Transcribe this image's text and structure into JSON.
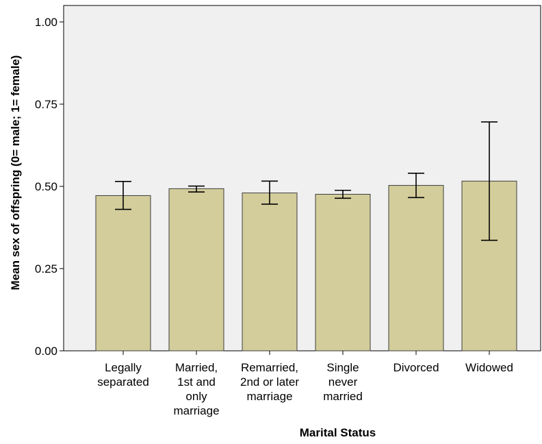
{
  "chart_data": {
    "type": "bar",
    "title": "",
    "xlabel": "Marital Status",
    "ylabel": "Mean sex of offspring (0= male; 1= female)",
    "ylim": [
      0,
      1.05
    ],
    "yticks": [
      0,
      0.25,
      0.5,
      0.75,
      1
    ],
    "ytick_labels": [
      "0.00",
      "0.25",
      "0.50",
      "0.75",
      "1.00"
    ],
    "categories": [
      [
        "Legally",
        "separated"
      ],
      [
        "Married,",
        "1st and",
        "only",
        "marriage"
      ],
      [
        "Remarried,",
        "2nd or later",
        "marriage"
      ],
      [
        "Single",
        "never",
        "married"
      ],
      [
        "Divorced"
      ],
      [
        "Widowed"
      ]
    ],
    "values": [
      0.472,
      0.493,
      0.48,
      0.476,
      0.503,
      0.516
    ],
    "error_low": [
      0.43,
      0.483,
      0.446,
      0.464,
      0.466,
      0.336
    ],
    "error_high": [
      0.515,
      0.501,
      0.516,
      0.488,
      0.54,
      0.696
    ],
    "grid": false,
    "legend": "none",
    "colors": {
      "plot_background": "#f0f0f0",
      "bar_fill": "#d3cd9b",
      "bar_stroke": "#3c3c3c",
      "error_bar": "#000000",
      "axis": "#000000",
      "text": "#000000"
    }
  }
}
